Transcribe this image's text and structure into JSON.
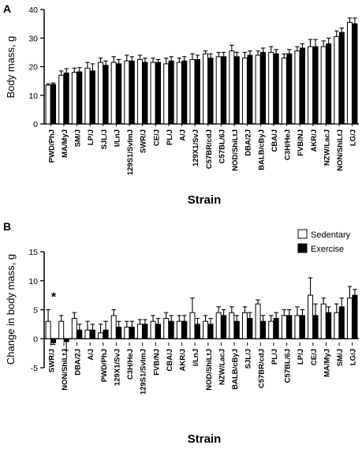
{
  "chart_data": [
    {
      "panel": "A",
      "type": "bar",
      "ylabel": "Body mass, g",
      "xlabel": "Strain",
      "ylim": [
        0,
        40
      ],
      "yticks": [
        0,
        10,
        20,
        30,
        40
      ],
      "categories": [
        "PWD/PhJ",
        "MA/MyJ",
        "SM/J",
        "LP/J",
        "SJL/J",
        "I/LnJ",
        "129S1/SvImJ",
        "SWR/J",
        "CE/J",
        "PL/J",
        "A/J",
        "129X1/SvJ",
        "C57BR/cdJ",
        "C57BL/6J",
        "NOD/ShiLtJ",
        "DBA/2J",
        "BALB/cByJ",
        "CBA/J",
        "C3H/HeJ",
        "FVB/NJ",
        "AKR/J",
        "NZW/LacJ",
        "NON/ShiLtJ",
        "LG/J"
      ],
      "series": [
        {
          "fill": "#ffffff",
          "values": [
            13.5,
            17,
            18,
            19.5,
            21.5,
            21.5,
            22,
            22.5,
            21.5,
            21,
            21.5,
            22.5,
            24.5,
            23.5,
            25.5,
            23,
            24,
            25,
            23,
            25.5,
            27,
            27,
            30.5,
            35.5
          ],
          "errors": [
            0.5,
            1.5,
            1.5,
            2,
            1.5,
            2,
            2,
            1.5,
            1.5,
            2,
            1.5,
            2,
            1,
            1.5,
            2,
            2,
            1.5,
            2,
            1.5,
            1.5,
            2.5,
            2,
            2,
            1.5
          ]
        },
        {
          "fill": "#000000",
          "values": [
            13.8,
            17.8,
            18.2,
            18.5,
            20.5,
            21,
            22,
            21.5,
            21.5,
            22,
            22,
            22.5,
            23,
            23.5,
            23.5,
            24,
            25,
            24.5,
            24.5,
            26.5,
            27,
            28,
            32,
            35
          ],
          "errors": [
            0.5,
            1.5,
            1.5,
            2.5,
            1.5,
            1.5,
            1.5,
            1.5,
            1,
            1.5,
            1.5,
            1.5,
            1.5,
            1.5,
            1.5,
            1.5,
            1.5,
            1.5,
            1.5,
            1.5,
            2.5,
            2,
            1.5,
            2
          ]
        }
      ]
    },
    {
      "panel": "B",
      "type": "bar",
      "ylabel": "Change in body mass, g",
      "xlabel": "Strain",
      "ylim": [
        -5,
        15
      ],
      "yticks": [
        -5,
        0,
        5,
        10,
        15
      ],
      "legend_position": "top-right",
      "categories": [
        "SWR/J",
        "NON/ShiLtJ",
        "DBA/2J",
        "A/J",
        "PWD/PhJ",
        "129X1/SvJ",
        "C3H/HeJ",
        "129S1/SvImJ",
        "FVB/NJ",
        "CBA/J",
        "AKR/J",
        "I/LnJ",
        "NOD/ShiLtJ",
        "NZW/LacJ",
        "BALB/cByJ",
        "SJL/J",
        "C57BR/cdJ",
        "PL/J",
        "C57BL/6J",
        "LP/J",
        "CE/J",
        "MA/MyJ",
        "SM/J",
        "LG/J"
      ],
      "series": [
        {
          "name": "Sedentary",
          "fill": "#ffffff",
          "values": [
            3,
            3,
            3.5,
            1.5,
            1,
            4,
            2,
            2.5,
            3,
            3.5,
            3,
            4.5,
            3,
            4.5,
            4.5,
            4.5,
            6,
            3,
            4,
            4,
            7.5,
            6,
            4.5,
            7
          ],
          "errors": [
            2,
            1,
            1,
            1.5,
            1.5,
            1,
            1,
            0.8,
            1,
            1,
            1,
            2.5,
            1,
            1,
            1,
            1,
            0.7,
            1,
            1,
            1.5,
            3,
            1,
            1.5,
            2
          ]
        },
        {
          "name": "Exercise",
          "fill": "#000000",
          "values": [
            -0.7,
            -0.5,
            1.5,
            1.5,
            1.5,
            2,
            2,
            2.5,
            2.5,
            3,
            3,
            2.5,
            2.5,
            4,
            3,
            3.5,
            3,
            3.5,
            4,
            4,
            4,
            4.5,
            5.5,
            7.5
          ],
          "errors": [
            0.3,
            1.5,
            1,
            1,
            1.5,
            1,
            1,
            0.8,
            1,
            1,
            1,
            1,
            1,
            1,
            1,
            1,
            1,
            1,
            1,
            1,
            2,
            1,
            1.5,
            1
          ]
        }
      ],
      "annotations": [
        {
          "text": "*",
          "category": "SWR/J"
        }
      ]
    }
  ]
}
